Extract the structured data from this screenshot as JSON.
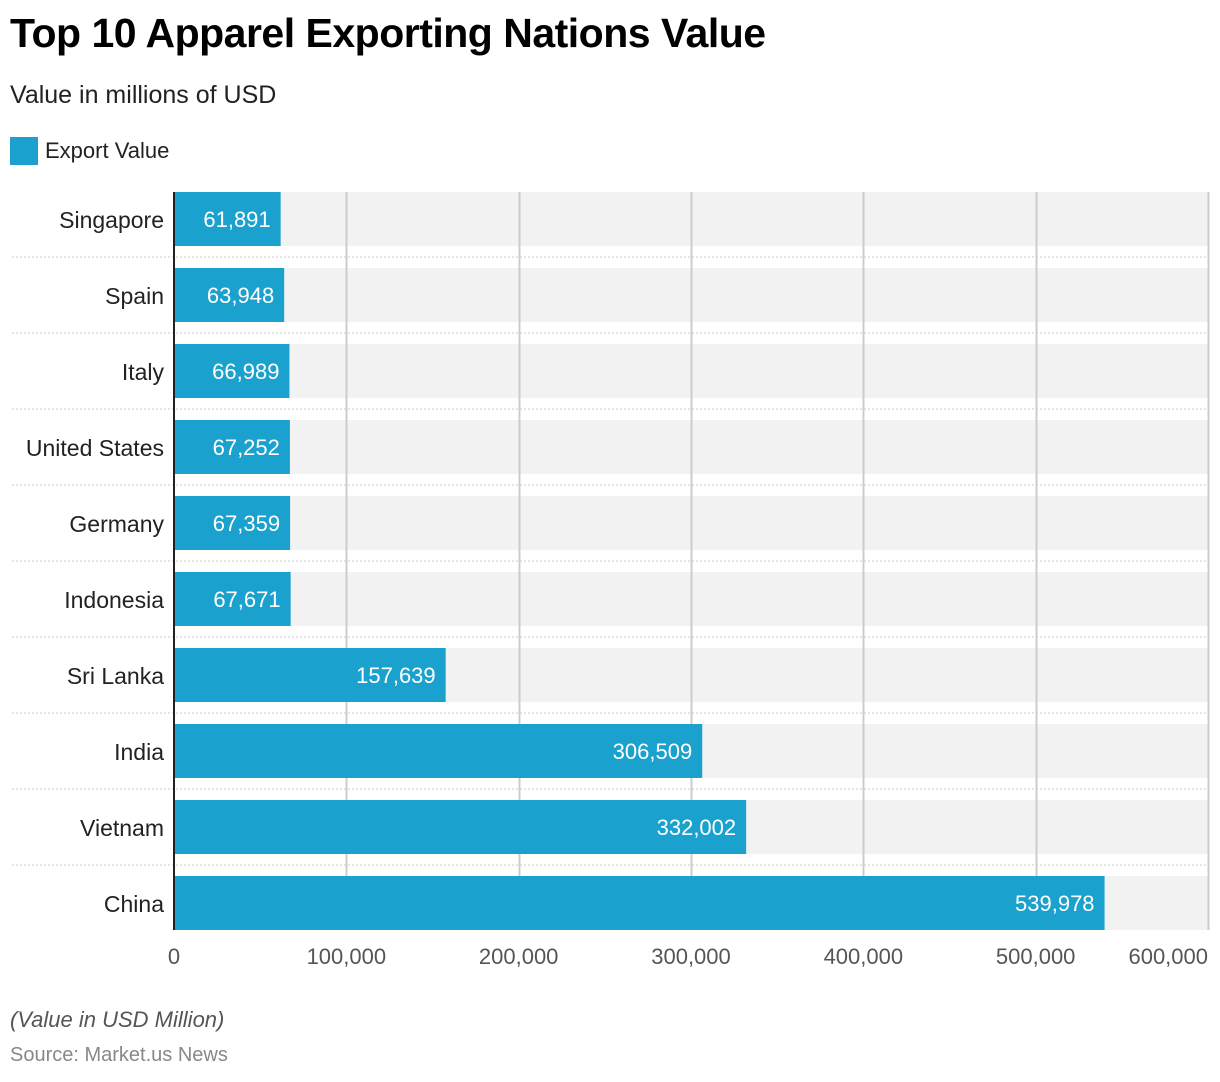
{
  "header": {
    "title": "Top 10 Apparel Exporting Nations Value",
    "subtitle": "Value in millions of USD"
  },
  "legend": {
    "label": "Export Value",
    "color": "#1ba1cd"
  },
  "footer": {
    "note": "(Value in USD Million)",
    "source": "Source: Market.us News"
  },
  "colors": {
    "bar": "#1ba1cd",
    "track": "#f2f2f2",
    "grid": "#cccccc",
    "axis": "#222222"
  },
  "chart_data": {
    "type": "bar",
    "orientation": "horizontal",
    "title": "Top 10 Apparel Exporting Nations Value",
    "subtitle": "Value in millions of USD",
    "xlabel": "",
    "ylabel": "",
    "xlim": [
      0,
      600000
    ],
    "xticks": [
      0,
      100000,
      200000,
      300000,
      400000,
      500000,
      600000
    ],
    "xtick_labels": [
      "0",
      "100,000",
      "200,000",
      "300,000",
      "400,000",
      "500,000",
      "600,000"
    ],
    "grid": true,
    "legend_position": "top-left",
    "categories": [
      "Singapore",
      "Spain",
      "Italy",
      "United States",
      "Germany",
      "Indonesia",
      "Sri Lanka",
      "India",
      "Vietnam",
      "China"
    ],
    "series": [
      {
        "name": "Export Value",
        "values": [
          61891,
          63948,
          66989,
          67252,
          67359,
          67671,
          157639,
          306509,
          332002,
          539978
        ],
        "labels": [
          "61,891",
          "63,948",
          "66,989",
          "67,252",
          "67,359",
          "67,671",
          "157,639",
          "306,509",
          "332,002",
          "539,978"
        ]
      }
    ]
  }
}
